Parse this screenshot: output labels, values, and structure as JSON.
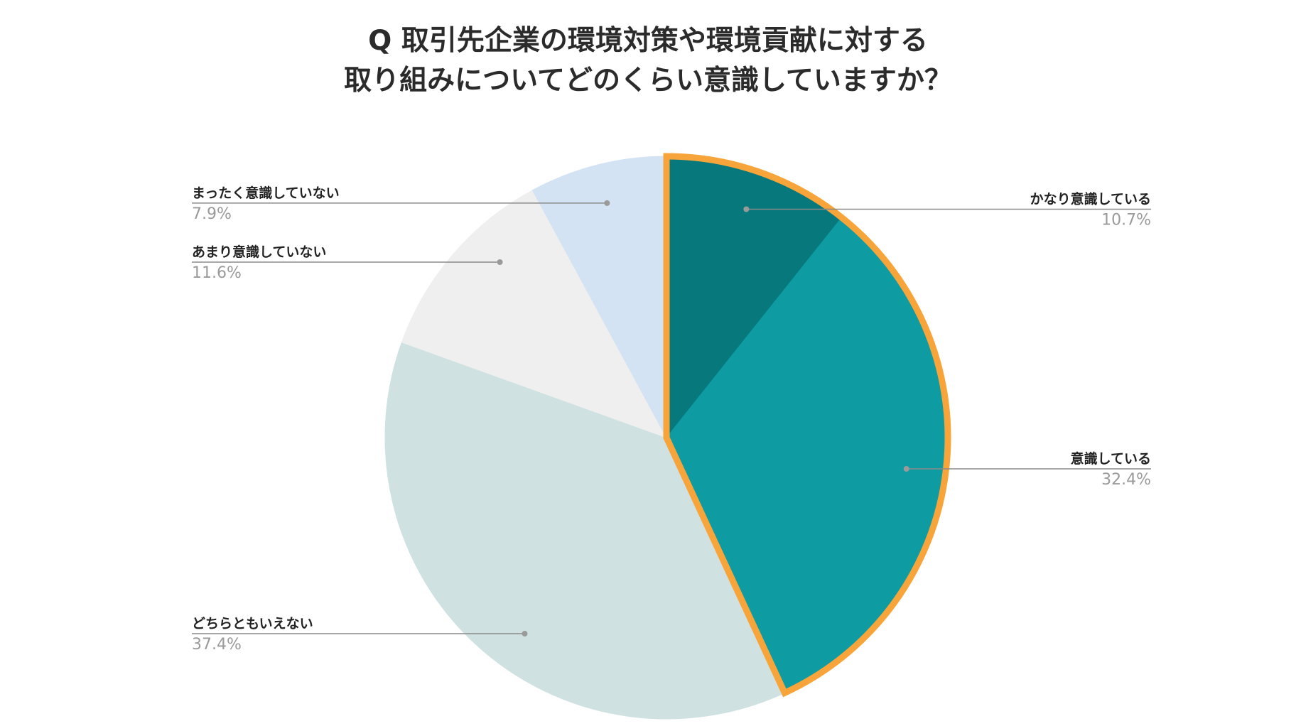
{
  "chart_data": {
    "type": "pie",
    "title_lines": [
      "Q 取引先企業の環境対策や環境貢献に対する",
      "取り組みについてどのくらい意識していますか？"
    ],
    "slices": [
      {
        "label": "かなり意識している",
        "value": 10.7,
        "display": "10.7%",
        "color": "#07787c"
      },
      {
        "label": "意識している",
        "value": 32.4,
        "display": "32.4%",
        "color": "#0f9ba2"
      },
      {
        "label": "どちらともいえない",
        "value": 37.4,
        "display": "37.4%",
        "color": "#cfe1e1"
      },
      {
        "label": "あまり意識していない",
        "value": 11.6,
        "display": "11.6%",
        "color": "#efefef"
      },
      {
        "label": "まったく意識していない",
        "value": 7.9,
        "display": "7.9%",
        "color": "#d3e3f3"
      }
    ],
    "highlight_group": [
      "かなり意識している",
      "意識している"
    ],
    "highlight_color": "#f7a53a",
    "start_angle": "12 o'clock",
    "direction": "clockwise",
    "legend": "callout labels"
  }
}
